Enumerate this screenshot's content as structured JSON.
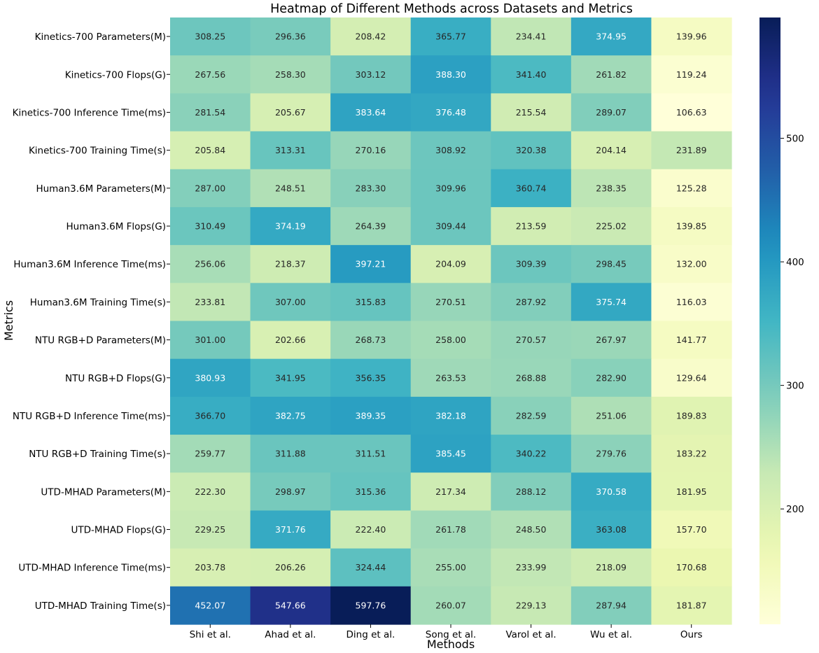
{
  "chart_data": {
    "type": "heatmap",
    "title": "Heatmap of Different Methods across Datasets and Metrics",
    "xlabel": "Methods",
    "ylabel": "Metrics",
    "columns": [
      "Shi et al.",
      "Ahad et al.",
      "Ding et al.",
      "Song et al.",
      "Varol et al.",
      "Wu et al.",
      "Ours"
    ],
    "rows": [
      "Kinetics-700 Parameters(M)",
      "Kinetics-700 Flops(G)",
      "Kinetics-700 Inference Time(ms)",
      "Kinetics-700 Training Time(s)",
      "Human3.6M Parameters(M)",
      "Human3.6M Flops(G)",
      "Human3.6M Inference Time(ms)",
      "Human3.6M Training Time(s)",
      "NTU RGB+D Parameters(M)",
      "NTU RGB+D Flops(G)",
      "NTU RGB+D Inference Time(ms)",
      "NTU RGB+D Training Time(s)",
      "UTD-MHAD Parameters(M)",
      "UTD-MHAD Flops(G)",
      "UTD-MHAD Inference Time(ms)",
      "UTD-MHAD Training Time(s)"
    ],
    "values": [
      [
        "308.25",
        "296.36",
        "208.42",
        "365.77",
        "234.41",
        "374.95",
        "139.96"
      ],
      [
        "267.56",
        "258.30",
        "303.12",
        "388.30",
        "341.40",
        "261.82",
        "119.24"
      ],
      [
        "281.54",
        "205.67",
        "383.64",
        "376.48",
        "215.54",
        "289.07",
        "106.63"
      ],
      [
        "205.84",
        "313.31",
        "270.16",
        "308.92",
        "320.38",
        "204.14",
        "231.89"
      ],
      [
        "287.00",
        "248.51",
        "283.30",
        "309.96",
        "360.74",
        "238.35",
        "125.28"
      ],
      [
        "310.49",
        "374.19",
        "264.39",
        "309.44",
        "213.59",
        "225.02",
        "139.85"
      ],
      [
        "256.06",
        "218.37",
        "397.21",
        "204.09",
        "309.39",
        "298.45",
        "132.00"
      ],
      [
        "233.81",
        "307.00",
        "315.83",
        "270.51",
        "287.92",
        "375.74",
        "116.03"
      ],
      [
        "301.00",
        "202.66",
        "268.73",
        "258.00",
        "270.57",
        "267.97",
        "141.77"
      ],
      [
        "380.93",
        "341.95",
        "356.35",
        "263.53",
        "268.88",
        "282.90",
        "129.64"
      ],
      [
        "366.70",
        "382.75",
        "389.35",
        "382.18",
        "282.59",
        "251.06",
        "189.83"
      ],
      [
        "259.77",
        "311.88",
        "311.51",
        "385.45",
        "340.22",
        "279.76",
        "183.22"
      ],
      [
        "222.30",
        "298.97",
        "315.36",
        "217.34",
        "288.12",
        "370.58",
        "181.95"
      ],
      [
        "229.25",
        "371.76",
        "222.40",
        "261.78",
        "248.50",
        "363.08",
        "157.70"
      ],
      [
        "203.78",
        "206.26",
        "324.44",
        "255.00",
        "233.99",
        "218.09",
        "170.68"
      ],
      [
        "452.07",
        "547.66",
        "597.76",
        "260.07",
        "229.13",
        "287.94",
        "181.87"
      ]
    ],
    "colorscale": "YlGnBu",
    "vmin": 106.63,
    "vmax": 597.76,
    "colorbar_ticks": [
      "200",
      "300",
      "400",
      "500"
    ],
    "grid": false
  }
}
